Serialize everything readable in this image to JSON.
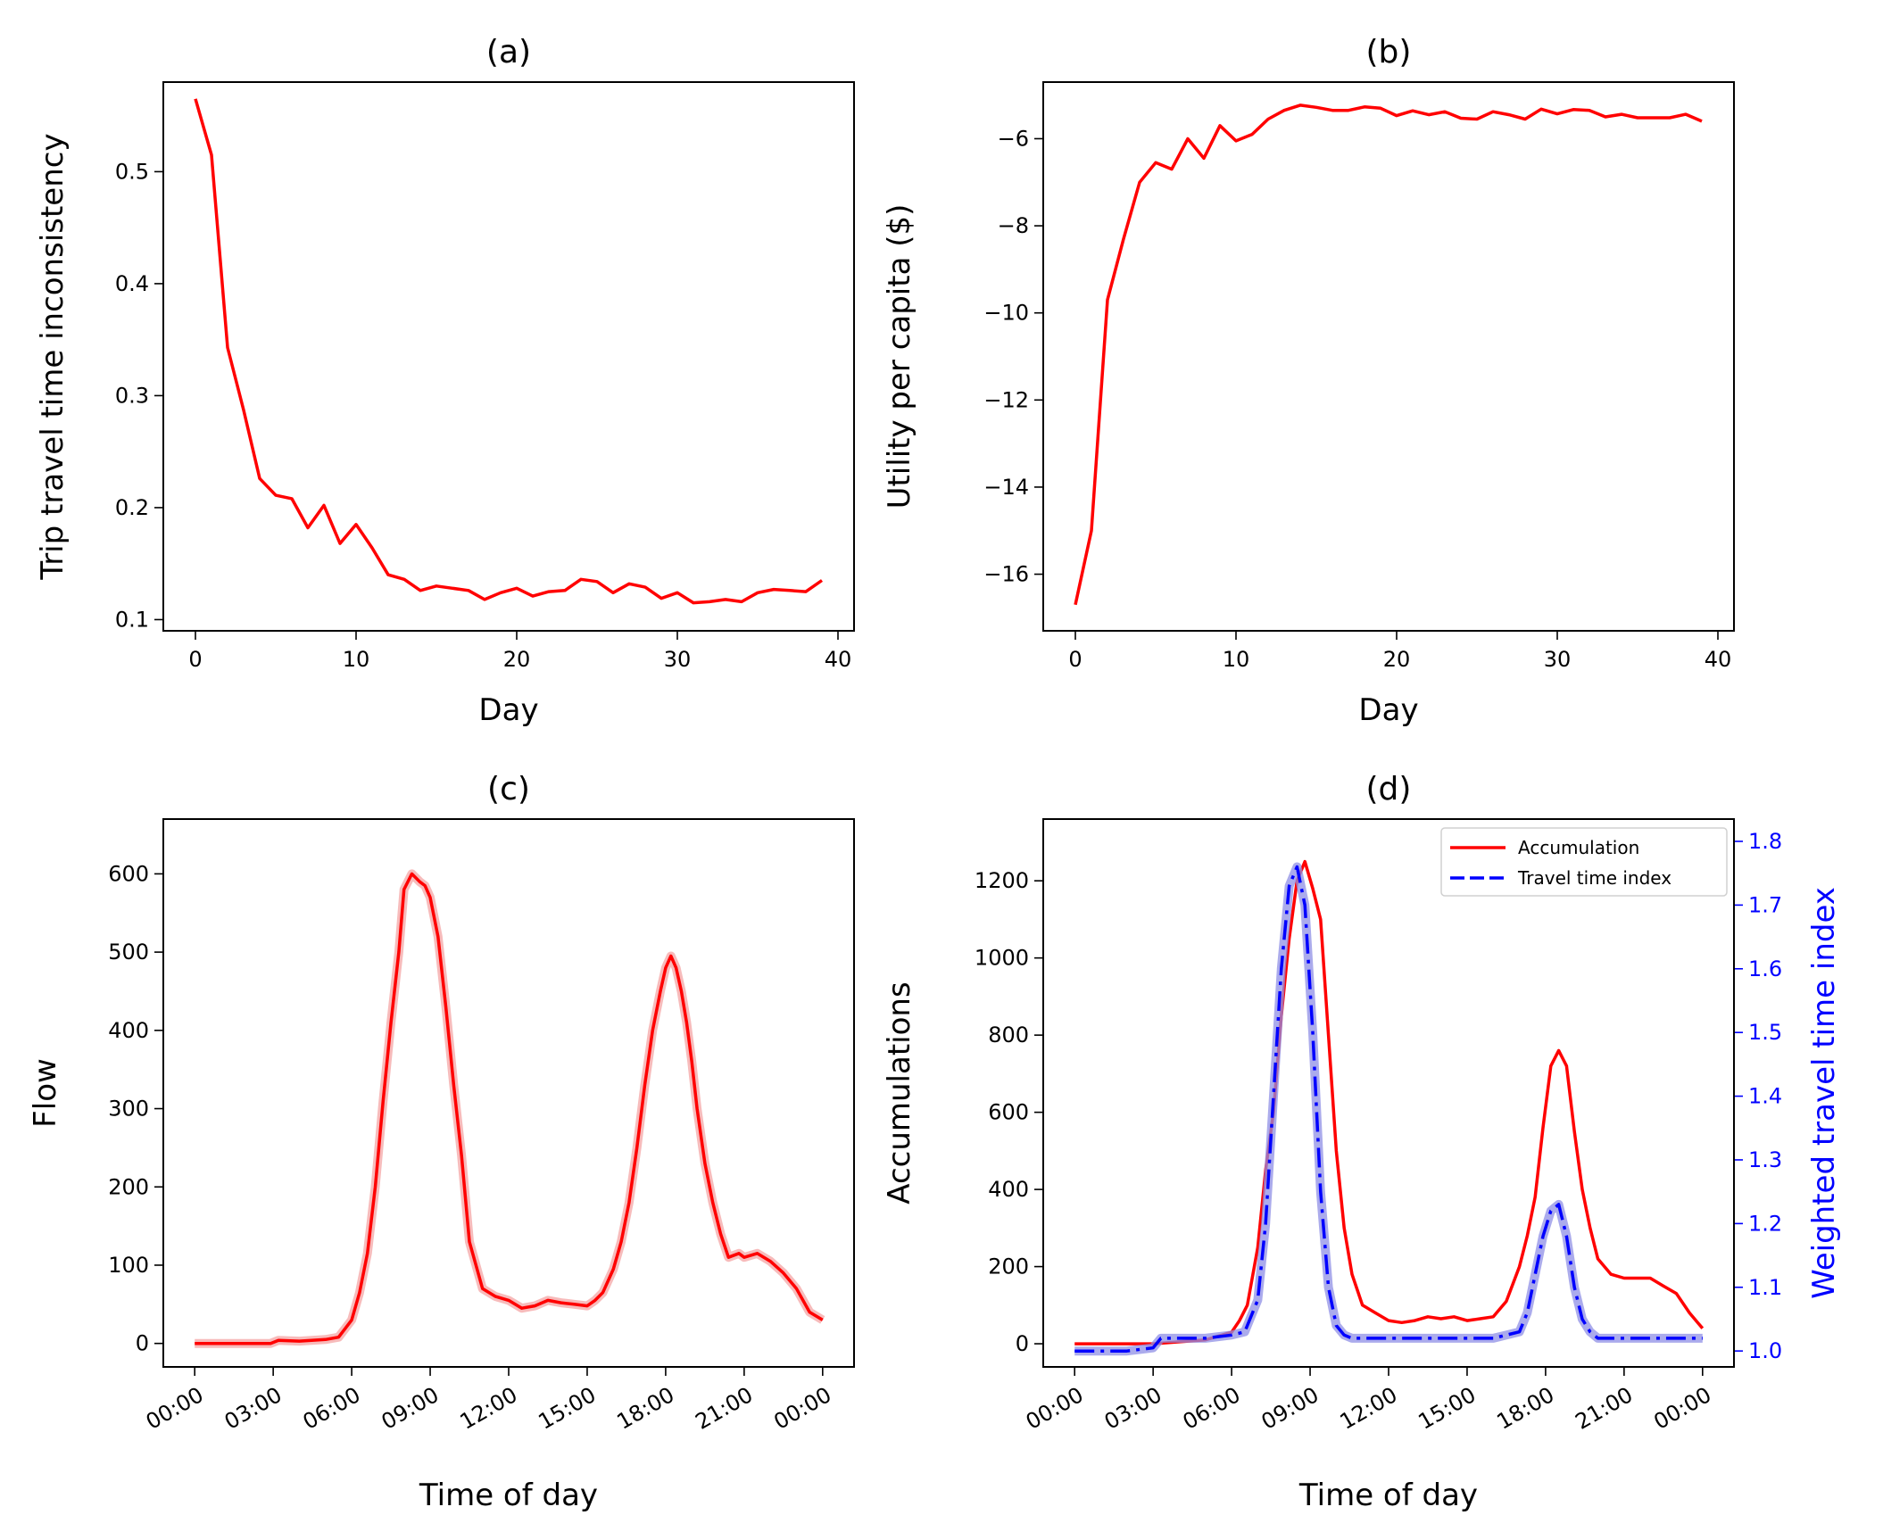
{
  "chart_data": [
    {
      "panel": "a",
      "type": "line",
      "title": "(a)",
      "xlabel": "Day",
      "ylabel": "Trip travel time inconsistency",
      "xlim": [
        -2,
        41
      ],
      "ylim": [
        0.09,
        0.58
      ],
      "xticks": [
        0,
        10,
        20,
        30,
        40
      ],
      "xtick_labels": [
        "0",
        "10",
        "20",
        "30",
        "40"
      ],
      "yticks": [
        0.1,
        0.2,
        0.3,
        0.4,
        0.5
      ],
      "ytick_labels": [
        "0.1",
        "0.2",
        "0.3",
        "0.4",
        "0.5"
      ],
      "grid": false,
      "series": [
        {
          "name": "inconsistency",
          "color": "#ff0000",
          "x": [
            0,
            1,
            2,
            3,
            4,
            5,
            6,
            7,
            8,
            9,
            10,
            11,
            12,
            13,
            14,
            15,
            16,
            17,
            18,
            19,
            20,
            21,
            22,
            23,
            24,
            25,
            26,
            27,
            28,
            29,
            30,
            31,
            32,
            33,
            34,
            35,
            36,
            37,
            38,
            39
          ],
          "y": [
            0.565,
            0.515,
            0.343,
            0.287,
            0.226,
            0.211,
            0.208,
            0.182,
            0.202,
            0.168,
            0.185,
            0.164,
            0.14,
            0.136,
            0.126,
            0.13,
            0.128,
            0.126,
            0.118,
            0.124,
            0.128,
            0.121,
            0.125,
            0.126,
            0.136,
            0.134,
            0.124,
            0.132,
            0.129,
            0.119,
            0.124,
            0.115,
            0.116,
            0.118,
            0.116,
            0.124,
            0.127,
            0.126,
            0.125,
            0.135
          ]
        }
      ]
    },
    {
      "panel": "b",
      "type": "line",
      "title": "(b)",
      "xlabel": "Day",
      "ylabel": "Utility per capita ($)",
      "xlim": [
        -2,
        41
      ],
      "ylim": [
        -17.3,
        -4.7
      ],
      "xticks": [
        0,
        10,
        20,
        30,
        40
      ],
      "xtick_labels": [
        "0",
        "10",
        "20",
        "30",
        "40"
      ],
      "yticks": [
        -16,
        -14,
        -12,
        -10,
        -8,
        -6
      ],
      "ytick_labels": [
        "−16",
        "−14",
        "−12",
        "−10",
        "−8",
        "−6"
      ],
      "grid": false,
      "series": [
        {
          "name": "utility",
          "color": "#ff0000",
          "x": [
            0,
            1,
            2,
            3,
            4,
            5,
            6,
            7,
            8,
            9,
            10,
            11,
            12,
            13,
            14,
            15,
            16,
            17,
            18,
            19,
            20,
            21,
            22,
            23,
            24,
            25,
            26,
            27,
            28,
            29,
            30,
            31,
            32,
            33,
            34,
            35,
            36,
            37,
            38,
            39
          ],
          "y": [
            -16.7,
            -15.0,
            -9.7,
            -8.3,
            -7.0,
            -6.55,
            -6.7,
            -6.0,
            -6.45,
            -5.7,
            -6.05,
            -5.9,
            -5.55,
            -5.35,
            -5.23,
            -5.28,
            -5.35,
            -5.35,
            -5.27,
            -5.3,
            -5.47,
            -5.36,
            -5.45,
            -5.38,
            -5.53,
            -5.55,
            -5.38,
            -5.45,
            -5.55,
            -5.32,
            -5.43,
            -5.33,
            -5.35,
            -5.5,
            -5.44,
            -5.52,
            -5.52,
            -5.52,
            -5.44,
            -5.6
          ]
        }
      ]
    },
    {
      "panel": "c",
      "type": "line",
      "title": "(c)",
      "xlabel": "Time of day",
      "ylabel": "Flow",
      "xlim": [
        -1.2,
        25.2
      ],
      "ylim": [
        -30,
        670
      ],
      "xticks": [
        0,
        3,
        6,
        9,
        12,
        15,
        18,
        21,
        24
      ],
      "xtick_labels": [
        "00:00",
        "03:00",
        "06:00",
        "09:00",
        "12:00",
        "15:00",
        "18:00",
        "21:00",
        "00:00"
      ],
      "yticks": [
        0,
        100,
        200,
        300,
        400,
        500,
        600
      ],
      "ytick_labels": [
        "0",
        "100",
        "200",
        "300",
        "400",
        "500",
        "600"
      ],
      "grid": false,
      "series": [
        {
          "name": "Flow",
          "color": "#ff0000",
          "band_color": "#f4a4a4",
          "x": [
            0,
            2.9,
            3.2,
            4,
            5,
            5.5,
            6,
            6.3,
            6.6,
            6.9,
            7.2,
            7.5,
            7.8,
            8,
            8.3,
            8.6,
            8.8,
            9,
            9.3,
            9.6,
            9.9,
            10.2,
            10.5,
            11,
            11.5,
            12,
            12.5,
            13,
            13.5,
            14,
            14.5,
            15,
            15.3,
            15.6,
            16,
            16.3,
            16.6,
            16.9,
            17.2,
            17.5,
            17.8,
            18,
            18.2,
            18.4,
            18.6,
            18.8,
            19,
            19.2,
            19.5,
            19.8,
            20.1,
            20.4,
            20.8,
            21,
            21.5,
            22,
            22.5,
            23,
            23.5,
            24
          ],
          "y": [
            0,
            0,
            4,
            3,
            5,
            8,
            30,
            65,
            115,
            200,
            310,
            410,
            500,
            580,
            600,
            590,
            585,
            570,
            520,
            430,
            330,
            240,
            130,
            70,
            60,
            55,
            45,
            48,
            55,
            52,
            50,
            48,
            55,
            65,
            95,
            130,
            180,
            250,
            330,
            400,
            450,
            480,
            495,
            480,
            450,
            410,
            360,
            300,
            230,
            180,
            140,
            110,
            115,
            110,
            115,
            105,
            90,
            70,
            40,
            30
          ]
        }
      ]
    },
    {
      "panel": "d",
      "type": "line",
      "title": "(d)",
      "xlabel": "Time of day",
      "ylabel": "Accumulations",
      "ylabel_right": "Weighted travel time index",
      "xlim": [
        -1.2,
        25.2
      ],
      "ylim": [
        -60,
        1360
      ],
      "ylim_right": [
        0.975,
        1.835
      ],
      "xticks": [
        0,
        3,
        6,
        9,
        12,
        15,
        18,
        21,
        24
      ],
      "xtick_labels": [
        "00:00",
        "03:00",
        "06:00",
        "09:00",
        "12:00",
        "15:00",
        "18:00",
        "21:00",
        "00:00"
      ],
      "yticks": [
        0,
        200,
        400,
        600,
        800,
        1000,
        1200
      ],
      "ytick_labels": [
        "0",
        "200",
        "400",
        "600",
        "800",
        "1000",
        "1200"
      ],
      "yticks_right": [
        1.0,
        1.1,
        1.2,
        1.3,
        1.4,
        1.5,
        1.6,
        1.7,
        1.8
      ],
      "ytick_labels_right": [
        "1.0",
        "1.1",
        "1.2",
        "1.3",
        "1.4",
        "1.5",
        "1.6",
        "1.7",
        "1.8"
      ],
      "right_axis_color": "#0000ff",
      "legend_position": "top-right",
      "grid": false,
      "series": [
        {
          "name": "Accumulation",
          "axis": "left",
          "color": "#ff0000",
          "dash": "solid",
          "x": [
            0,
            3,
            4,
            5,
            5.5,
            6,
            6.3,
            6.6,
            7,
            7.3,
            7.6,
            7.9,
            8.2,
            8.5,
            8.8,
            9.1,
            9.4,
            9.7,
            10,
            10.3,
            10.6,
            11,
            11.5,
            12,
            12.5,
            13,
            13.5,
            14,
            14.5,
            15,
            15.5,
            16,
            16.5,
            17,
            17.3,
            17.6,
            17.9,
            18.2,
            18.5,
            18.8,
            19.1,
            19.4,
            19.7,
            20,
            20.5,
            21,
            21.5,
            22,
            22.5,
            23,
            23.5,
            24
          ],
          "y": [
            0,
            0,
            5,
            10,
            20,
            30,
            60,
            100,
            250,
            450,
            600,
            850,
            1050,
            1200,
            1250,
            1180,
            1100,
            800,
            500,
            300,
            180,
            100,
            80,
            60,
            55,
            60,
            70,
            65,
            70,
            60,
            65,
            70,
            110,
            200,
            280,
            380,
            560,
            720,
            760,
            720,
            550,
            400,
            300,
            220,
            180,
            170,
            170,
            170,
            150,
            130,
            80,
            40
          ]
        },
        {
          "name": "Travel time index",
          "axis": "right",
          "color": "#0000ff",
          "band_color": "#8f8fe6",
          "dash": "dashdot",
          "x": [
            0,
            1,
            2,
            3,
            3.3,
            4,
            5,
            6,
            6.5,
            7,
            7.3,
            7.6,
            7.9,
            8.2,
            8.5,
            8.8,
            9.1,
            9.4,
            9.7,
            10,
            10.3,
            10.6,
            11,
            12,
            13,
            14,
            15,
            16,
            16.5,
            17,
            17.3,
            17.6,
            17.9,
            18.2,
            18.5,
            18.8,
            19.1,
            19.4,
            19.7,
            20,
            20.5,
            21,
            22,
            23,
            24
          ],
          "y": [
            1.0,
            1.0,
            1.0,
            1.005,
            1.02,
            1.02,
            1.02,
            1.025,
            1.03,
            1.08,
            1.2,
            1.4,
            1.6,
            1.73,
            1.76,
            1.7,
            1.5,
            1.25,
            1.1,
            1.04,
            1.025,
            1.02,
            1.02,
            1.02,
            1.02,
            1.02,
            1.02,
            1.02,
            1.025,
            1.03,
            1.06,
            1.12,
            1.18,
            1.22,
            1.23,
            1.18,
            1.1,
            1.05,
            1.03,
            1.02,
            1.02,
            1.02,
            1.02,
            1.02,
            1.02
          ]
        }
      ]
    }
  ]
}
